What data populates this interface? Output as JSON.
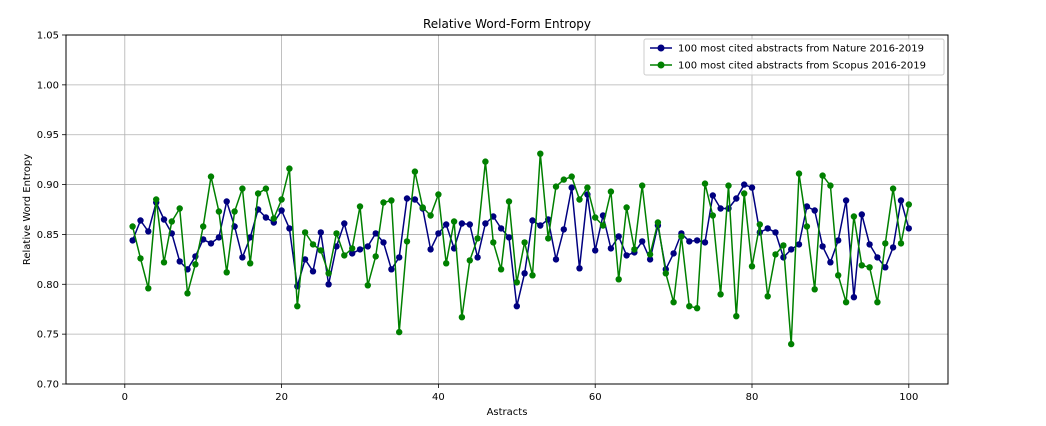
{
  "chart_data": {
    "type": "line",
    "title": "Relative Word-Form Entropy",
    "xlabel": "Astracts",
    "ylabel": "Relative Word Entropy",
    "xlim": [
      -7.5,
      105
    ],
    "ylim": [
      0.7,
      1.05
    ],
    "xticks": [
      0,
      20,
      40,
      60,
      80,
      100
    ],
    "xtick_labels": [
      "0",
      "20",
      "40",
      "60",
      "80",
      "100"
    ],
    "yticks": [
      0.7,
      0.75,
      0.8,
      0.85,
      0.9,
      0.95,
      1.0,
      1.05
    ],
    "ytick_labels": [
      "0.70",
      "0.75",
      "0.80",
      "0.85",
      "0.90",
      "0.95",
      "1.00",
      "1.05"
    ],
    "grid": true,
    "legend_position": "top-right",
    "x": [
      1,
      2,
      3,
      4,
      5,
      6,
      7,
      8,
      9,
      10,
      11,
      12,
      13,
      14,
      15,
      16,
      17,
      18,
      19,
      20,
      21,
      22,
      23,
      24,
      25,
      26,
      27,
      28,
      29,
      30,
      31,
      32,
      33,
      34,
      35,
      36,
      37,
      38,
      39,
      40,
      41,
      42,
      43,
      44,
      45,
      46,
      47,
      48,
      49,
      50,
      51,
      52,
      53,
      54,
      55,
      56,
      57,
      58,
      59,
      60,
      61,
      62,
      63,
      64,
      65,
      66,
      67,
      68,
      69,
      70,
      71,
      72,
      73,
      74,
      75,
      76,
      77,
      78,
      79,
      80,
      81,
      82,
      83,
      84,
      85,
      86,
      87,
      88,
      89,
      90,
      91,
      92,
      93,
      94,
      95,
      96,
      97,
      98,
      99,
      100
    ],
    "series": [
      {
        "name": "100 most cited abstracts from Nature 2016-2019",
        "color": "#000080",
        "values": [
          0.844,
          0.864,
          0.853,
          0.882,
          0.865,
          0.851,
          0.823,
          0.815,
          0.828,
          0.845,
          0.841,
          0.847,
          0.883,
          0.858,
          0.827,
          0.847,
          0.875,
          0.867,
          0.862,
          0.874,
          0.856,
          0.798,
          0.825,
          0.813,
          0.852,
          0.8,
          0.838,
          0.861,
          0.831,
          0.835,
          0.838,
          0.851,
          0.842,
          0.815,
          0.827,
          0.886,
          0.885,
          0.876,
          0.835,
          0.851,
          0.86,
          0.836,
          0.861,
          0.86,
          0.827,
          0.861,
          0.868,
          0.856,
          0.847,
          0.778,
          0.811,
          0.864,
          0.859,
          0.865,
          0.825,
          0.855,
          0.897,
          0.816,
          0.89,
          0.834,
          0.869,
          0.836,
          0.848,
          0.829,
          0.832,
          0.843,
          0.825,
          0.859,
          0.815,
          0.831,
          0.851,
          0.843,
          0.844,
          0.842,
          0.889,
          0.876,
          0.876,
          0.886,
          0.9,
          0.897,
          0.852,
          0.856,
          0.852,
          0.827,
          0.835,
          0.84,
          0.878,
          0.874,
          0.838,
          0.822,
          0.844,
          0.884,
          0.787,
          0.87,
          0.84,
          0.827,
          0.817,
          0.837,
          0.884,
          0.856
        ]
      },
      {
        "name": "100 most cited abstracts from Scopus 2016-2019",
        "color": "#008000",
        "values": [
          0.858,
          0.826,
          0.796,
          0.885,
          0.822,
          0.863,
          0.876,
          0.791,
          0.82,
          0.858,
          0.908,
          0.873,
          0.812,
          0.873,
          0.896,
          0.821,
          0.891,
          0.896,
          0.866,
          0.885,
          0.916,
          0.778,
          0.852,
          0.84,
          0.834,
          0.811,
          0.851,
          0.829,
          0.836,
          0.878,
          0.799,
          0.828,
          0.882,
          0.884,
          0.752,
          0.843,
          0.913,
          0.877,
          0.869,
          0.89,
          0.821,
          0.863,
          0.767,
          0.824,
          0.846,
          0.923,
          0.842,
          0.815,
          0.883,
          0.802,
          0.842,
          0.809,
          0.931,
          0.846,
          0.898,
          0.905,
          0.908,
          0.885,
          0.897,
          0.867,
          0.859,
          0.893,
          0.805,
          0.877,
          0.835,
          0.899,
          0.83,
          0.862,
          0.811,
          0.782,
          0.848,
          0.778,
          0.776,
          0.901,
          0.869,
          0.79,
          0.899,
          0.768,
          0.891,
          0.818,
          0.86,
          0.788,
          0.83,
          0.839,
          0.74,
          0.911,
          0.858,
          0.795,
          0.909,
          0.899,
          0.809,
          0.782,
          0.868,
          0.819,
          0.817,
          0.782,
          0.841,
          0.896,
          0.841,
          0.88
        ]
      }
    ]
  }
}
